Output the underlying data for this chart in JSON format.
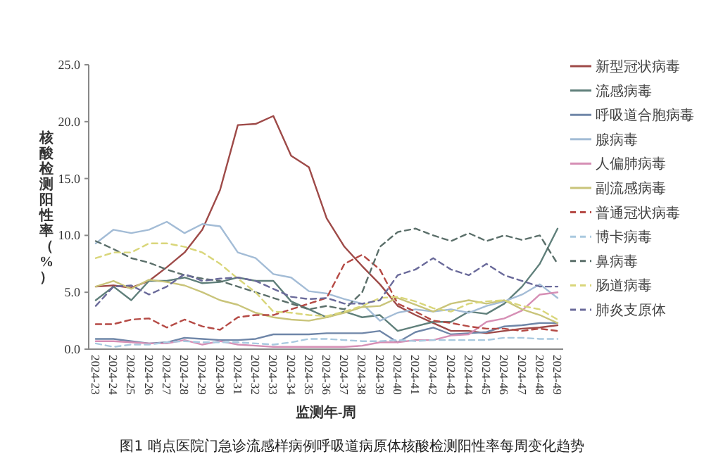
{
  "chart_data": {
    "type": "line",
    "xlabel": "监测年-周",
    "ylabel": "核酸检测阳性率（%）",
    "categories": [
      "2024-23",
      "2024-24",
      "2024-25",
      "2024-26",
      "2024-27",
      "2024-28",
      "2024-29",
      "2024-30",
      "2024-31",
      "2024-32",
      "2024-33",
      "2024-34",
      "2024-35",
      "2024-36",
      "2024-37",
      "2024-38",
      "2024-39",
      "2024-40",
      "2024-41",
      "2024-42",
      "2024-43",
      "2024-44",
      "2024-45",
      "2024-46",
      "2024-47",
      "2024-48",
      "2024-49"
    ],
    "ylim": [
      0,
      25
    ],
    "yticks": [
      {
        "value": 0,
        "label": "0.0"
      },
      {
        "value": 5,
        "label": "5.0"
      },
      {
        "value": 10,
        "label": "10.0"
      },
      {
        "value": 15,
        "label": "15.0"
      },
      {
        "value": 20,
        "label": "20.0"
      },
      {
        "value": 25,
        "label": "25.0"
      }
    ],
    "grid": false,
    "legend": "right",
    "marker": "none",
    "series": [
      {
        "name": "新型冠状病毒",
        "color": "#9e4a48",
        "line_style": "solid",
        "values": [
          5.5,
          5.6,
          5.4,
          6.0,
          7.2,
          8.5,
          10.5,
          14.0,
          19.7,
          19.8,
          20.5,
          17.0,
          16.0,
          11.5,
          9.0,
          7.3,
          5.7,
          3.8,
          3.0,
          2.3,
          1.6,
          1.6,
          1.4,
          1.6,
          1.8,
          1.9,
          2.1
        ]
      },
      {
        "name": "流感病毒",
        "color": "#5f7f7a",
        "line_style": "solid",
        "values": [
          4.3,
          5.5,
          4.3,
          6.0,
          6.0,
          6.3,
          5.8,
          5.9,
          6.3,
          6.0,
          6.0,
          4.2,
          3.5,
          2.8,
          3.3,
          2.8,
          3.0,
          1.6,
          2.0,
          2.4,
          2.4,
          3.3,
          3.1,
          4.0,
          5.5,
          7.5,
          10.6
        ]
      },
      {
        "name": "呼吸道合胞病毒",
        "color": "#6f86a8",
        "line_style": "solid",
        "values": [
          0.9,
          0.9,
          0.7,
          0.5,
          0.6,
          1.0,
          0.9,
          0.8,
          0.8,
          0.9,
          1.3,
          1.3,
          1.3,
          1.4,
          1.4,
          1.4,
          1.6,
          0.6,
          1.5,
          1.9,
          1.3,
          1.4,
          1.5,
          2.0,
          2.1,
          2.3,
          2.3
        ]
      },
      {
        "name": "腺病毒",
        "color": "#a3bcd6",
        "line_style": "solid",
        "values": [
          9.3,
          10.5,
          10.2,
          10.5,
          11.2,
          10.2,
          11.0,
          10.8,
          8.5,
          8.0,
          6.6,
          6.3,
          5.1,
          4.9,
          4.4,
          4.0,
          2.5,
          3.2,
          3.5,
          3.3,
          3.5,
          3.2,
          3.8,
          4.2,
          4.8,
          5.7,
          4.5
        ]
      },
      {
        "name": "人偏肺病毒",
        "color": "#d68fb5",
        "line_style": "solid",
        "values": [
          0.7,
          0.7,
          0.6,
          0.5,
          0.5,
          0.8,
          0.4,
          0.7,
          0.4,
          0.3,
          0.2,
          0.2,
          0.2,
          0.2,
          0.2,
          0.3,
          0.6,
          0.6,
          0.8,
          0.8,
          1.2,
          1.3,
          2.4,
          2.7,
          3.4,
          4.8,
          5.0
        ]
      },
      {
        "name": "副流感病毒",
        "color": "#c9c47a",
        "line_style": "solid",
        "values": [
          5.5,
          6.0,
          5.3,
          6.1,
          5.9,
          5.6,
          5.0,
          4.3,
          3.9,
          3.2,
          2.8,
          2.6,
          2.5,
          2.8,
          3.2,
          3.7,
          3.8,
          4.5,
          3.9,
          3.3,
          4.0,
          4.3,
          4.0,
          4.3,
          3.5,
          3.0,
          2.3
        ]
      },
      {
        "name": "普通冠状病毒",
        "color": "#b54a45",
        "line_style": "dashed",
        "values": [
          2.2,
          2.2,
          2.6,
          2.7,
          1.9,
          2.6,
          2.0,
          1.7,
          2.8,
          3.0,
          3.0,
          3.5,
          4.0,
          4.5,
          7.5,
          8.3,
          7.0,
          4.0,
          3.3,
          2.5,
          2.3,
          2.0,
          1.8,
          1.8,
          1.6,
          1.8,
          1.6
        ]
      },
      {
        "name": "博卡病毒",
        "color": "#a9c9df",
        "line_style": "dashed",
        "values": [
          0.5,
          0.2,
          0.4,
          0.4,
          0.6,
          0.7,
          0.6,
          0.6,
          0.6,
          0.5,
          0.4,
          0.6,
          0.9,
          0.9,
          0.8,
          0.7,
          0.7,
          0.8,
          0.7,
          0.8,
          0.8,
          0.8,
          0.8,
          1.0,
          1.0,
          0.9,
          0.9
        ]
      },
      {
        "name": "鼻病毒",
        "color": "#5b6f6a",
        "line_style": "dashed",
        "values": [
          9.5,
          8.8,
          8.0,
          7.6,
          7.0,
          6.5,
          6.2,
          6.0,
          5.5,
          5.0,
          4.5,
          4.0,
          3.5,
          3.8,
          3.5,
          5.0,
          9.0,
          10.3,
          10.6,
          10.0,
          9.5,
          10.2,
          9.5,
          10.0,
          9.6,
          10.0,
          7.5
        ]
      },
      {
        "name": "肠道病毒",
        "color": "#d9d67a",
        "line_style": "dashed",
        "values": [
          8.0,
          8.5,
          8.5,
          9.3,
          9.3,
          9.0,
          8.5,
          7.5,
          6.2,
          5.0,
          3.3,
          3.2,
          3.0,
          2.9,
          3.3,
          3.8,
          4.5,
          4.6,
          4.2,
          3.6,
          3.3,
          4.0,
          4.2,
          4.3,
          3.8,
          3.5,
          2.6
        ]
      },
      {
        "name": "肺炎支原体",
        "color": "#6a6a9a",
        "line_style": "dashed",
        "values": [
          3.8,
          5.5,
          5.6,
          4.8,
          5.5,
          6.6,
          6.0,
          6.2,
          6.3,
          6.0,
          5.3,
          4.6,
          4.4,
          4.5,
          4.0,
          4.0,
          4.3,
          6.5,
          7.0,
          8.0,
          7.0,
          6.5,
          7.5,
          6.5,
          6.0,
          5.5,
          5.5
        ]
      }
    ],
    "annotations": [
      "图1 哨点医院门急诊流感样病例呼吸道病原体核酸检测阳性率每周变化趋势"
    ]
  }
}
